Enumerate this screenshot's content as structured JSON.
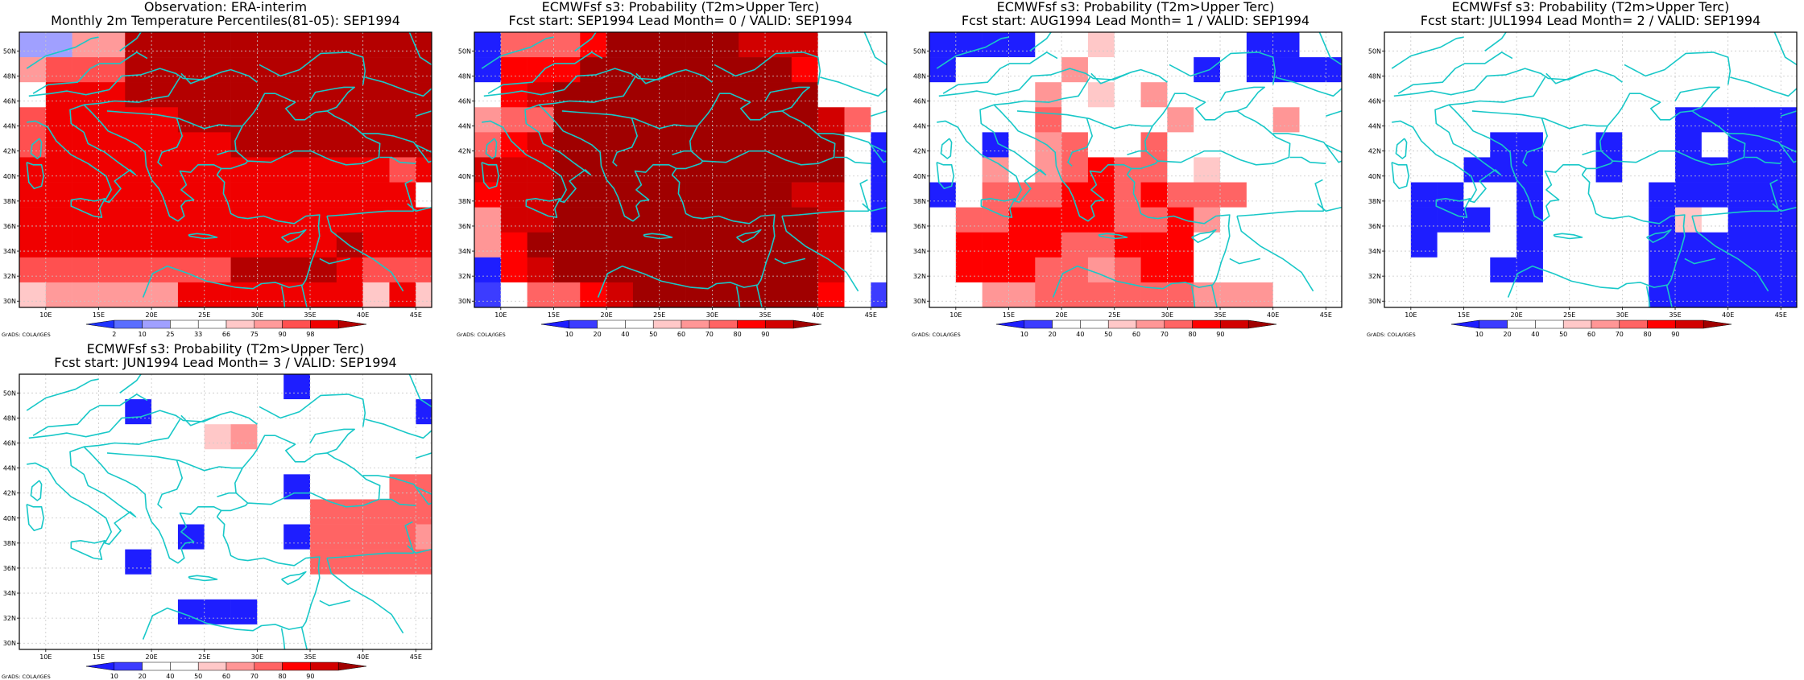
{
  "credit": "GrADS: COLA/IGES",
  "colors": {
    "coast": "#19c8c8",
    "frame": "#000000",
    "grid": "#c8c8c8",
    "obs_scale": [
      "#1e32ff",
      "#5a6eff",
      "#a0a0ff",
      "#ffffff",
      "#ffffff",
      "#ffc8c8",
      "#ff9a9a",
      "#ff5050",
      "#f00000",
      "#b40000"
    ],
    "prob_scale": [
      "#1e1eff",
      "#3c3cff",
      "#ffffff",
      "#ffffff",
      "#ffc8c8",
      "#ff9696",
      "#ff6464",
      "#ff0000",
      "#d20000",
      "#a00000"
    ]
  },
  "axes": {
    "lon": {
      "min": 7.5,
      "max": 46.5,
      "ticks": [
        10,
        15,
        20,
        25,
        30,
        35,
        40,
        45
      ],
      "labels": [
        "10E",
        "15E",
        "20E",
        "25E",
        "30E",
        "35E",
        "40E",
        "45E"
      ]
    },
    "lat": {
      "min": 29.5,
      "max": 51.5,
      "ticks": [
        30,
        32,
        34,
        36,
        38,
        40,
        42,
        44,
        46,
        48,
        50
      ],
      "labels": [
        "30N",
        "32N",
        "34N",
        "36N",
        "38N",
        "40N",
        "42N",
        "44N",
        "46N",
        "48N",
        "50N"
      ]
    },
    "grid": true,
    "cell": {
      "dlon": 2.5,
      "dlat": 2.0,
      "lon0": 7.5,
      "lat0": 29.5
    }
  },
  "chart_data": [
    {
      "type": "heatmap",
      "title_lines": [
        "Observation: ERA-interim",
        "Monthly 2m Temperature Percentiles(81-05): SEP1994"
      ],
      "colorbar": {
        "labels": [
          "2",
          "10",
          "25",
          "33",
          "66",
          "75",
          "90",
          "98"
        ],
        "scale": "obs_scale"
      },
      "rows_north_to_south": [
        "2266999999999999",
        "6777999999999999",
        "3888999999999999",
        "7888889999999999",
        "7888888899999999",
        "8888888888888878",
        "8888888888888883",
        "8888888888888888",
        "8888888888889888",
        "7777777799998777",
        "5666668888888585"
      ]
    },
    {
      "type": "heatmap",
      "title_lines": [
        "ECMWFsf s3: Probability (T2m>Upper Terc)",
        "Fcst start: SEP1994   Lead Month= 0 / VALID: SEP1994"
      ],
      "colorbar": {
        "labels": [
          "10",
          "20",
          "40",
          "50",
          "60",
          "70",
          "80",
          "90"
        ],
        "scale": "prob_scale"
      },
      "rows_north_to_south": [
        "0666799999888222",
        "0777999999997222",
        "2789999999999222",
        "5669999999999862",
        "6789999999999920",
        "8889999999999920",
        "7889999999998820",
        "5889999999999820",
        "5799999999999822",
        "0789999999999822",
        "1266789999999721"
      ]
    },
    {
      "type": "heatmap",
      "title_lines": [
        "ECMWFsf s3: Probability (T2m>Upper Terc)",
        "Fcst start: AUG1994   Lead Month= 1 / VALID: SEP1994"
      ],
      "colorbar": {
        "labels": [
          "10",
          "20",
          "40",
          "50",
          "60",
          "70",
          "80",
          "90"
        ],
        "scale": "prob_scale"
      },
      "rows_north_to_south": [
        "0000224222220022",
        "0222252222020000",
        "2222524252222222",
        "2222622225222522",
        "2202562262222222",
        "2252567662422222",
        "0266677676662222",
        "2667777667522222",
        "2777766777222222",
        "2777665677222222",
        "2255666666555222"
      ]
    },
    {
      "type": "heatmap",
      "title_lines": [
        "ECMWFsf s3: Probability (T2m>Upper Terc)",
        "Fcst start: JUL1994   Lead Month= 2 / VALID: SEP1994"
      ],
      "colorbar": {
        "labels": [
          "10",
          "20",
          "40",
          "50",
          "60",
          "70",
          "80",
          "90"
        ],
        "scale": "prob_scale"
      },
      "rows_north_to_south": [
        "2223222222222222",
        "2222222222222222",
        "2222222222222222",
        "2222222222200000",
        "2222002202202000",
        "2220002202200000",
        "2002202222000000",
        "2000202222042000",
        "2022202222000000",
        "2222002222000000",
        "2222222222000000"
      ]
    },
    {
      "type": "heatmap",
      "title_lines": [
        "ECMWFsf s3: Probability (T2m>Upper Terc)",
        "Fcst start: JUN1994   Lead Month= 3 / VALID: SEP1994"
      ],
      "colorbar": {
        "labels": [
          "10",
          "20",
          "40",
          "50",
          "60",
          "70",
          "80",
          "90"
        ],
        "scale": "prob_scale"
      },
      "rows_north_to_south": [
        "2222222222022222",
        "2222022222222220",
        "2222222452222222",
        "2222222222222222",
        "2222222222022266",
        "2222222222266666",
        "2222220222066665",
        "2222022222266666",
        "2222222222222222",
        "2222220002222222",
        "2222222222222222"
      ]
    }
  ]
}
